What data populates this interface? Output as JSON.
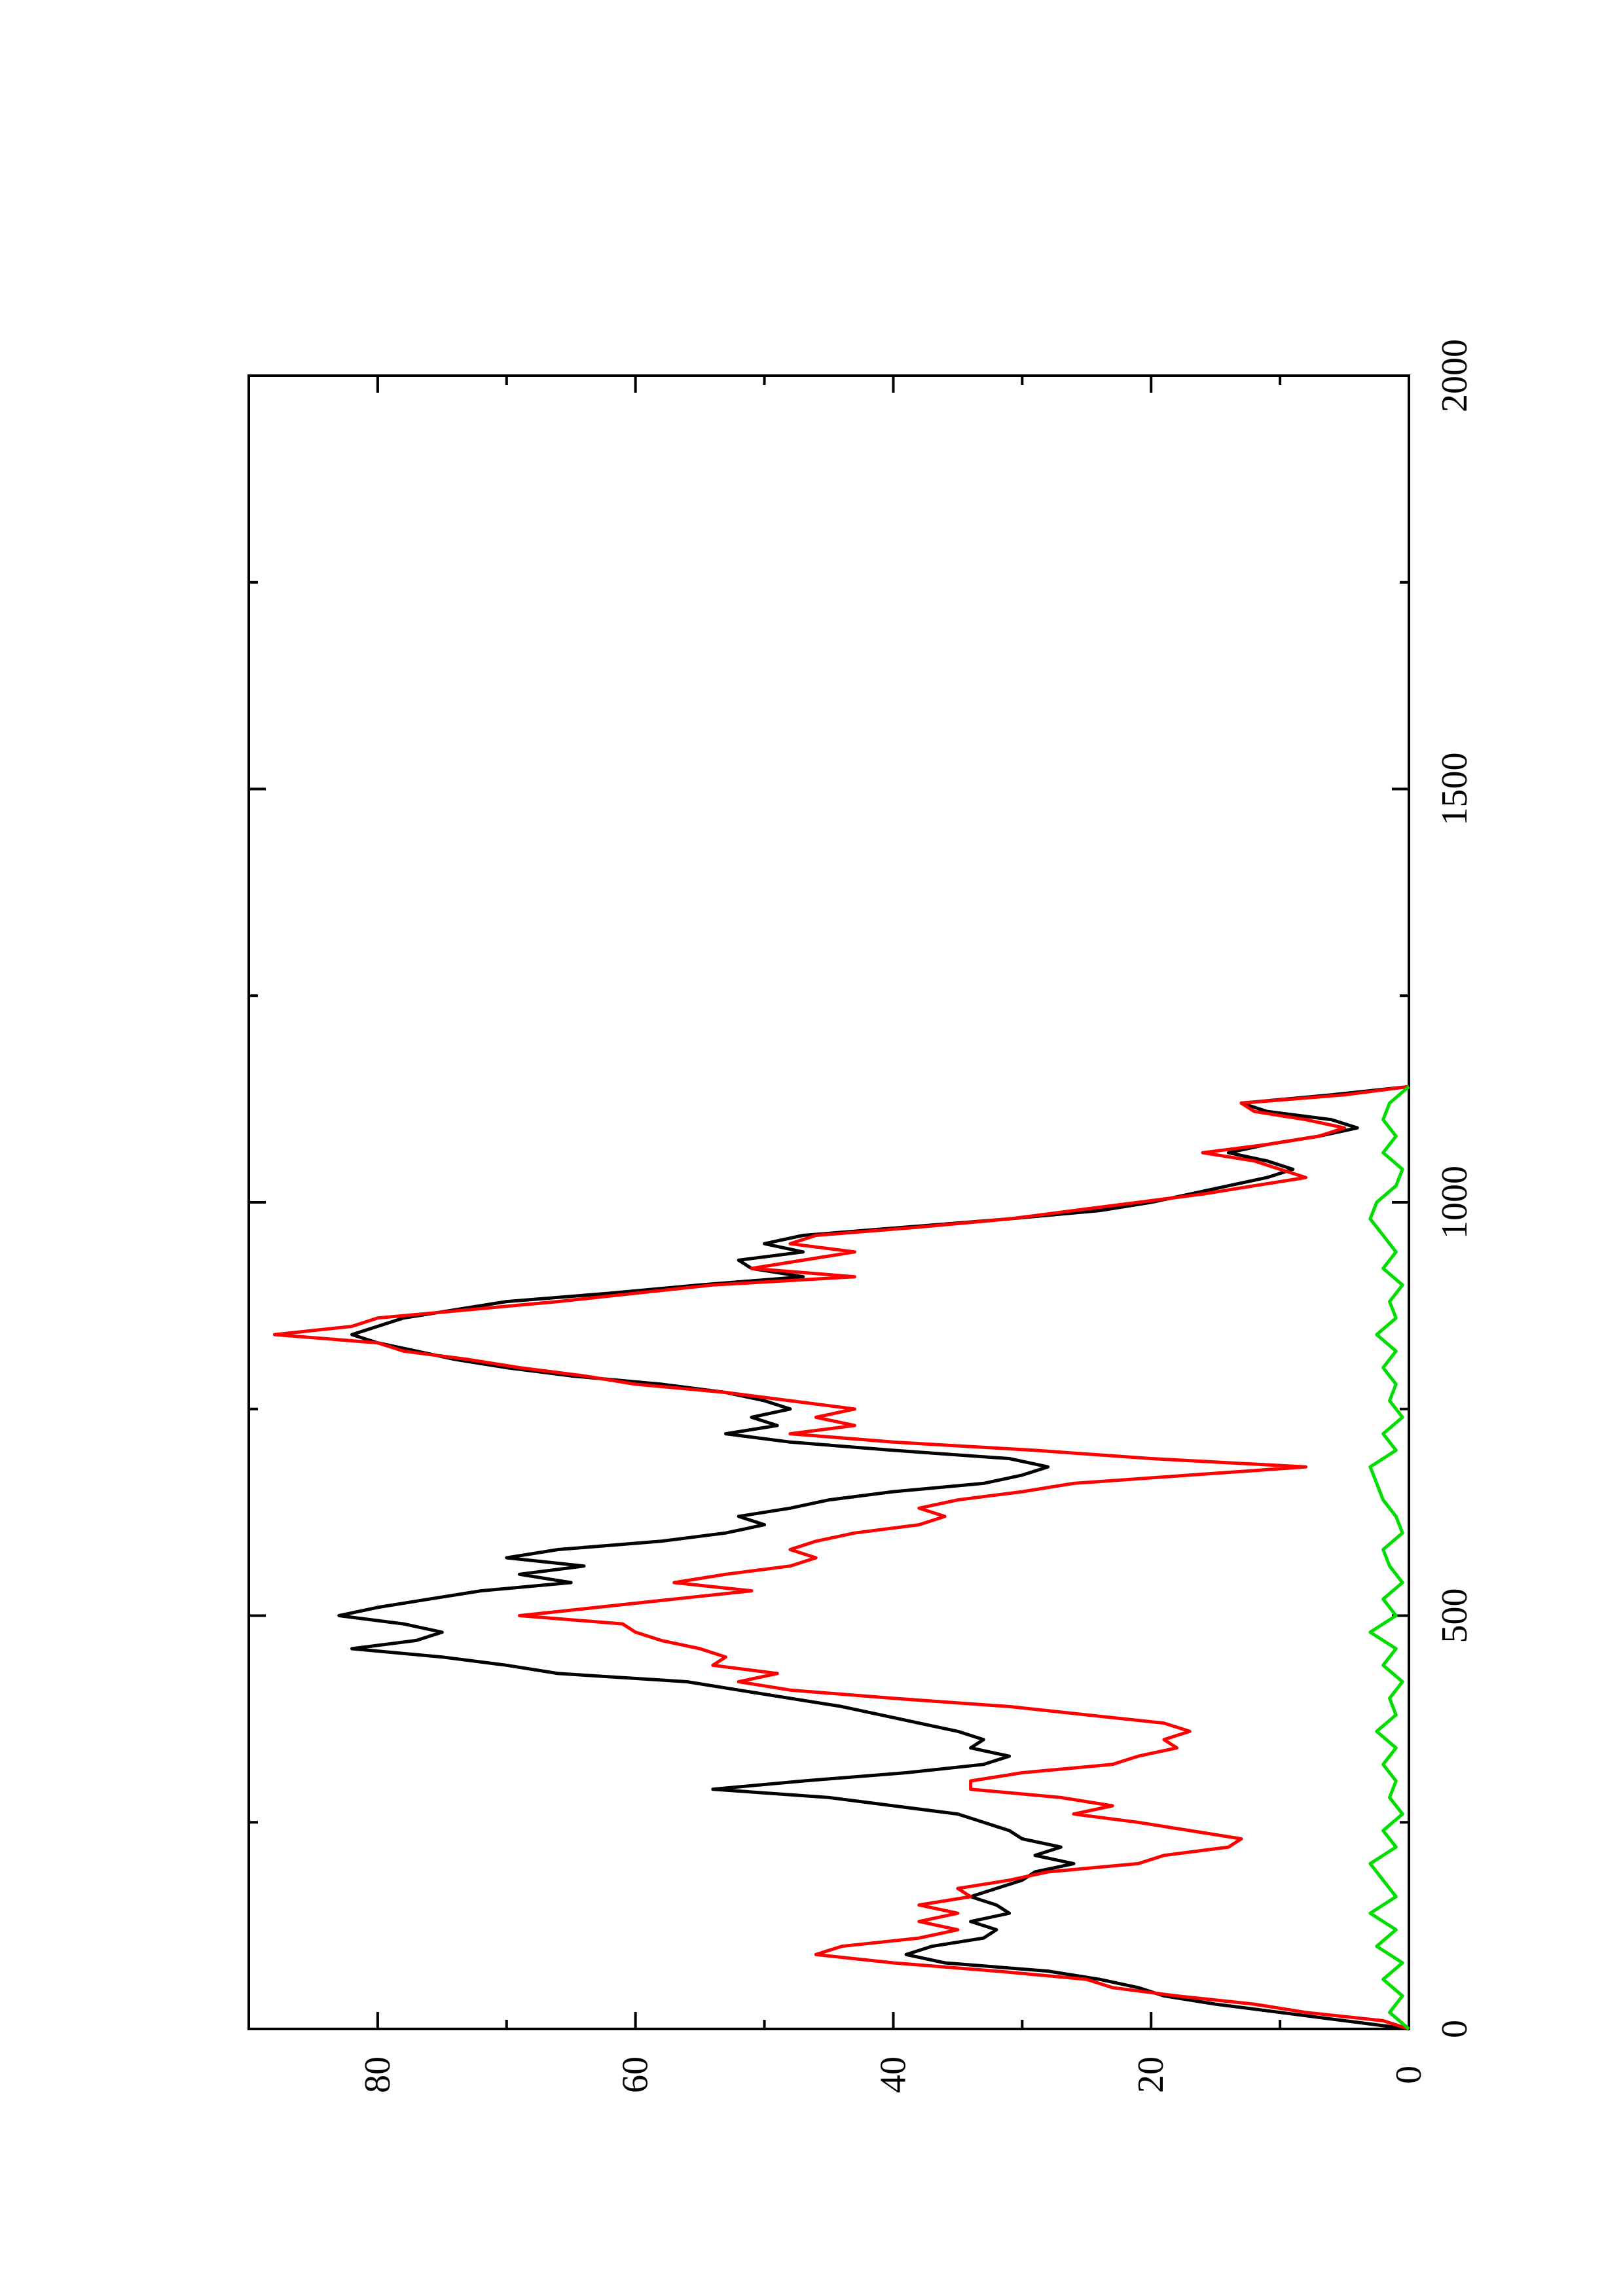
{
  "chart_data": {
    "type": "line",
    "orientation": "rotated-90-ccw",
    "title": "",
    "xlabel": "",
    "ylabel": "",
    "xlim": [
      0,
      2000
    ],
    "ylim": [
      0,
      90
    ],
    "x_ticks": [
      0,
      500,
      1000,
      1500,
      2000
    ],
    "x_tick_labels": [
      "0",
      "500",
      "1000",
      "1500",
      "2000"
    ],
    "y_ticks": [
      0,
      20,
      40,
      60,
      80
    ],
    "y_tick_labels": [
      "0",
      "20",
      "40",
      "60",
      "80"
    ],
    "grid": false,
    "legend": "none",
    "series": [
      {
        "color": "#000000",
        "points": [
          [
            0,
            0
          ],
          [
            10,
            5
          ],
          [
            20,
            10
          ],
          [
            30,
            15
          ],
          [
            40,
            19
          ],
          [
            50,
            21
          ],
          [
            60,
            24
          ],
          [
            70,
            28
          ],
          [
            80,
            36
          ],
          [
            90,
            39
          ],
          [
            100,
            37
          ],
          [
            110,
            33
          ],
          [
            120,
            32
          ],
          [
            130,
            34
          ],
          [
            140,
            31
          ],
          [
            150,
            32
          ],
          [
            160,
            34
          ],
          [
            170,
            32
          ],
          [
            180,
            30
          ],
          [
            190,
            29
          ],
          [
            200,
            26
          ],
          [
            210,
            29
          ],
          [
            220,
            27
          ],
          [
            230,
            30
          ],
          [
            240,
            31
          ],
          [
            250,
            33
          ],
          [
            260,
            35
          ],
          [
            270,
            40
          ],
          [
            280,
            45
          ],
          [
            290,
            54
          ],
          [
            300,
            47
          ],
          [
            310,
            39
          ],
          [
            320,
            33
          ],
          [
            330,
            31
          ],
          [
            340,
            34
          ],
          [
            350,
            33
          ],
          [
            360,
            35
          ],
          [
            370,
            38
          ],
          [
            380,
            41
          ],
          [
            390,
            44
          ],
          [
            400,
            48
          ],
          [
            410,
            52
          ],
          [
            420,
            56
          ],
          [
            430,
            66
          ],
          [
            440,
            70
          ],
          [
            450,
            75
          ],
          [
            460,
            82
          ],
          [
            470,
            77
          ],
          [
            480,
            75
          ],
          [
            490,
            78
          ],
          [
            500,
            83
          ],
          [
            510,
            80
          ],
          [
            520,
            76
          ],
          [
            530,
            72
          ],
          [
            540,
            65
          ],
          [
            550,
            69
          ],
          [
            560,
            64
          ],
          [
            570,
            70
          ],
          [
            580,
            66
          ],
          [
            590,
            58
          ],
          [
            600,
            53
          ],
          [
            610,
            50
          ],
          [
            620,
            52
          ],
          [
            630,
            48
          ],
          [
            640,
            45
          ],
          [
            650,
            40
          ],
          [
            660,
            33
          ],
          [
            670,
            30
          ],
          [
            680,
            28
          ],
          [
            690,
            31
          ],
          [
            700,
            40
          ],
          [
            710,
            48
          ],
          [
            720,
            53
          ],
          [
            730,
            49
          ],
          [
            740,
            51
          ],
          [
            750,
            48
          ],
          [
            760,
            50
          ],
          [
            770,
            53
          ],
          [
            780,
            58
          ],
          [
            790,
            65
          ],
          [
            800,
            70
          ],
          [
            810,
            74
          ],
          [
            820,
            77
          ],
          [
            830,
            80
          ],
          [
            840,
            82
          ],
          [
            850,
            80
          ],
          [
            860,
            78
          ],
          [
            870,
            74
          ],
          [
            880,
            70
          ],
          [
            890,
            62
          ],
          [
            900,
            55
          ],
          [
            910,
            47
          ],
          [
            920,
            51
          ],
          [
            930,
            52
          ],
          [
            940,
            47
          ],
          [
            950,
            50
          ],
          [
            960,
            47
          ],
          [
            970,
            39
          ],
          [
            980,
            31
          ],
          [
            990,
            24
          ],
          [
            1000,
            20
          ],
          [
            1010,
            17
          ],
          [
            1020,
            14
          ],
          [
            1030,
            11
          ],
          [
            1040,
            9
          ],
          [
            1050,
            11
          ],
          [
            1060,
            14
          ],
          [
            1070,
            11
          ],
          [
            1080,
            7
          ],
          [
            1090,
            4
          ],
          [
            1100,
            6
          ],
          [
            1110,
            11
          ],
          [
            1120,
            13
          ],
          [
            1130,
            6
          ],
          [
            1140,
            0
          ]
        ]
      },
      {
        "color": "#ff0000",
        "points": [
          [
            0,
            0
          ],
          [
            10,
            2
          ],
          [
            20,
            8
          ],
          [
            30,
            12
          ],
          [
            40,
            18
          ],
          [
            50,
            23
          ],
          [
            60,
            25
          ],
          [
            70,
            32
          ],
          [
            80,
            40
          ],
          [
            90,
            46
          ],
          [
            100,
            44
          ],
          [
            110,
            38
          ],
          [
            120,
            35
          ],
          [
            130,
            38
          ],
          [
            140,
            35
          ],
          [
            150,
            38
          ],
          [
            160,
            34
          ],
          [
            170,
            35
          ],
          [
            180,
            31
          ],
          [
            190,
            28
          ],
          [
            200,
            21
          ],
          [
            210,
            19
          ],
          [
            220,
            14
          ],
          [
            230,
            13
          ],
          [
            240,
            17
          ],
          [
            250,
            21
          ],
          [
            260,
            26
          ],
          [
            270,
            23
          ],
          [
            280,
            27
          ],
          [
            290,
            34
          ],
          [
            300,
            34
          ],
          [
            310,
            30
          ],
          [
            320,
            23
          ],
          [
            330,
            21
          ],
          [
            340,
            18
          ],
          [
            350,
            19
          ],
          [
            360,
            17
          ],
          [
            370,
            19
          ],
          [
            380,
            25
          ],
          [
            390,
            31
          ],
          [
            400,
            40
          ],
          [
            410,
            48
          ],
          [
            420,
            52
          ],
          [
            430,
            49
          ],
          [
            440,
            54
          ],
          [
            450,
            53
          ],
          [
            460,
            55
          ],
          [
            470,
            58
          ],
          [
            480,
            60
          ],
          [
            490,
            61
          ],
          [
            500,
            69
          ],
          [
            510,
            63
          ],
          [
            520,
            57
          ],
          [
            530,
            51
          ],
          [
            540,
            57
          ],
          [
            550,
            53
          ],
          [
            560,
            48
          ],
          [
            570,
            46
          ],
          [
            580,
            48
          ],
          [
            590,
            46
          ],
          [
            600,
            43
          ],
          [
            610,
            38
          ],
          [
            620,
            36
          ],
          [
            630,
            38
          ],
          [
            640,
            35
          ],
          [
            650,
            30
          ],
          [
            660,
            26
          ],
          [
            670,
            17
          ],
          [
            680,
            8
          ],
          [
            690,
            20
          ],
          [
            700,
            29
          ],
          [
            710,
            40
          ],
          [
            720,
            48
          ],
          [
            730,
            43
          ],
          [
            740,
            46
          ],
          [
            750,
            43
          ],
          [
            760,
            48
          ],
          [
            770,
            53
          ],
          [
            780,
            60
          ],
          [
            790,
            64
          ],
          [
            800,
            69
          ],
          [
            810,
            73
          ],
          [
            820,
            78
          ],
          [
            830,
            80
          ],
          [
            840,
            88
          ],
          [
            850,
            82
          ],
          [
            860,
            80
          ],
          [
            870,
            73
          ],
          [
            880,
            66
          ],
          [
            890,
            60
          ],
          [
            900,
            54
          ],
          [
            910,
            43
          ],
          [
            920,
            51
          ],
          [
            930,
            47
          ],
          [
            940,
            43
          ],
          [
            950,
            48
          ],
          [
            960,
            46
          ],
          [
            970,
            38
          ],
          [
            980,
            31
          ],
          [
            990,
            26
          ],
          [
            1000,
            21
          ],
          [
            1010,
            16
          ],
          [
            1020,
            12
          ],
          [
            1030,
            8
          ],
          [
            1040,
            10
          ],
          [
            1050,
            12
          ],
          [
            1060,
            16
          ],
          [
            1070,
            11
          ],
          [
            1080,
            7
          ],
          [
            1090,
            5
          ],
          [
            1100,
            8
          ],
          [
            1110,
            12
          ],
          [
            1120,
            13
          ],
          [
            1130,
            5
          ],
          [
            1140,
            0
          ]
        ]
      },
      {
        "color": "#00dd00",
        "points": [
          [
            0,
            0
          ],
          [
            20,
            1.5
          ],
          [
            40,
            0.5
          ],
          [
            60,
            2
          ],
          [
            80,
            0.5
          ],
          [
            100,
            2.5
          ],
          [
            120,
            1
          ],
          [
            140,
            3
          ],
          [
            160,
            1
          ],
          [
            180,
            2
          ],
          [
            200,
            3
          ],
          [
            220,
            1
          ],
          [
            240,
            2
          ],
          [
            260,
            0.5
          ],
          [
            280,
            1.5
          ],
          [
            300,
            1
          ],
          [
            320,
            2
          ],
          [
            340,
            1
          ],
          [
            360,
            2.5
          ],
          [
            380,
            1
          ],
          [
            400,
            1.5
          ],
          [
            420,
            0.5
          ],
          [
            440,
            2
          ],
          [
            460,
            1
          ],
          [
            480,
            3
          ],
          [
            500,
            1
          ],
          [
            520,
            2
          ],
          [
            540,
            0.5
          ],
          [
            560,
            1.5
          ],
          [
            580,
            2
          ],
          [
            600,
            0.5
          ],
          [
            620,
            1
          ],
          [
            640,
            2
          ],
          [
            660,
            2.5
          ],
          [
            680,
            3
          ],
          [
            700,
            1
          ],
          [
            720,
            2
          ],
          [
            740,
            0.5
          ],
          [
            760,
            1.5
          ],
          [
            780,
            1
          ],
          [
            800,
            2
          ],
          [
            820,
            1
          ],
          [
            840,
            2.5
          ],
          [
            860,
            1
          ],
          [
            880,
            1.5
          ],
          [
            900,
            0.5
          ],
          [
            920,
            2
          ],
          [
            940,
            1
          ],
          [
            960,
            2
          ],
          [
            980,
            3
          ],
          [
            1000,
            2.5
          ],
          [
            1020,
            1
          ],
          [
            1040,
            0.5
          ],
          [
            1060,
            2
          ],
          [
            1080,
            1
          ],
          [
            1100,
            2
          ],
          [
            1120,
            1.5
          ],
          [
            1140,
            0
          ]
        ]
      }
    ]
  }
}
